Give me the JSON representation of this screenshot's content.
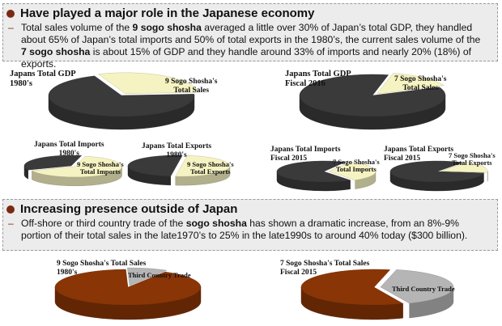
{
  "section1": {
    "heading": "Have played a major role in the Japanese economy",
    "dash": "–",
    "p": [
      "Total sales volume of the ",
      "9 sogo shosha",
      " averaged a little over 30% of Japan’s total GDP, they handled about 65% of Japan’s total imports and 50% of total exports in the 1980’s, the current sales volume of the ",
      "7 sogo shosha",
      " is about 15% of GDP and they handle around 33% of imports and nearly 20% (18%) of exports."
    ]
  },
  "section2": {
    "heading": "Increasing presence outside of Japan",
    "dash": "–",
    "p": [
      "Off-shore or third country trade of the ",
      "sogo shosha",
      " has shown a dramatic increase, from an 8%-9% portion of their total sales in the late1970’s to 25% in the late1990s to around 40% today ($300 billion)."
    ]
  },
  "colors": {
    "dark": "#3a3a3a",
    "light": "#f6f3c2",
    "brown": "#8a3506",
    "gray": "#b5b5b5",
    "bullet": "#7a2a12"
  },
  "charts": {
    "gdp1980": {
      "title": "Japans Total GDP\n1980's",
      "slice": "9 Sogo Shosha's\nTotal Sales",
      "share": 30
    },
    "gdp2016": {
      "title": "Japans Total GDP\nFiscal 2016",
      "slice": "7 Sogo Shosha's\nTotal Sales",
      "share": 15
    },
    "imp1980": {
      "title": "Japans Total Imports\n1980's",
      "slice": "9 Sogo Shosha's\nTotal Imports",
      "share": 65
    },
    "exp1980": {
      "title": "Japans Total Exports\n1980's",
      "slice": "9 Sogo Shosha's\nTotal Exports",
      "share": 50
    },
    "imp2015": {
      "title": "Japans Total Imports\nFiscal 2015",
      "slice": "7 Sogo Shosha's\nTotal Imports",
      "share": 33
    },
    "exp2015": {
      "title": "Japans Total Exports\nFiscal 2015",
      "slice": "7 Sogo Shosha's\nTotal Exports",
      "share": 18
    },
    "sales1980": {
      "title": "9 Sogo Shosha's Total Sales\n1980's",
      "slice": "Third Country Trade",
      "share": 9
    },
    "sales2015": {
      "title": "7 Sogo Shosha's Total Sales\nFiscal 2015",
      "slice": "Third Country Trade",
      "share": 40
    }
  }
}
